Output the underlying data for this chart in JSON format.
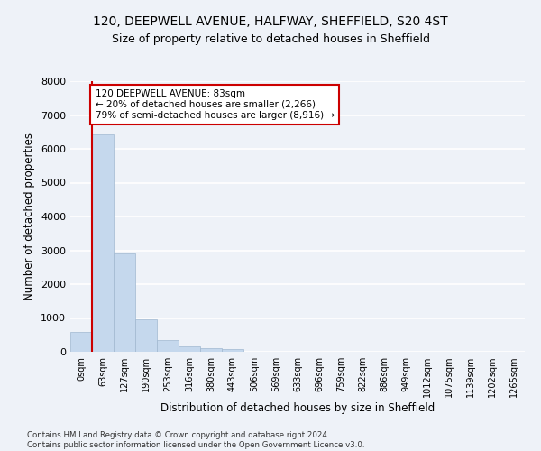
{
  "title_line1": "120, DEEPWELL AVENUE, HALFWAY, SHEFFIELD, S20 4ST",
  "title_line2": "Size of property relative to detached houses in Sheffield",
  "xlabel": "Distribution of detached houses by size in Sheffield",
  "ylabel": "Number of detached properties",
  "footnote": "Contains HM Land Registry data © Crown copyright and database right 2024.\nContains public sector information licensed under the Open Government Licence v3.0.",
  "bar_labels": [
    "0sqm",
    "63sqm",
    "127sqm",
    "190sqm",
    "253sqm",
    "316sqm",
    "380sqm",
    "443sqm",
    "506sqm",
    "569sqm",
    "633sqm",
    "696sqm",
    "759sqm",
    "822sqm",
    "886sqm",
    "949sqm",
    "1012sqm",
    "1075sqm",
    "1139sqm",
    "1202sqm",
    "1265sqm"
  ],
  "bar_values": [
    580,
    6420,
    2920,
    970,
    360,
    170,
    105,
    90,
    0,
    0,
    0,
    0,
    0,
    0,
    0,
    0,
    0,
    0,
    0,
    0,
    0
  ],
  "bar_color": "#c5d8ed",
  "bar_edge_color": "#a0b8d0",
  "property_line_x": 1,
  "property_line_color": "#cc0000",
  "annotation_text": "120 DEEPWELL AVENUE: 83sqm\n← 20% of detached houses are smaller (2,266)\n79% of semi-detached houses are larger (8,916) →",
  "annotation_box_color": "white",
  "annotation_box_edge_color": "#cc0000",
  "ylim": [
    0,
    8000
  ],
  "yticks": [
    0,
    1000,
    2000,
    3000,
    4000,
    5000,
    6000,
    7000,
    8000
  ],
  "bg_color": "#eef2f8",
  "plot_bg_color": "#eef2f8",
  "grid_color": "white",
  "title_fontsize": 10,
  "subtitle_fontsize": 9
}
